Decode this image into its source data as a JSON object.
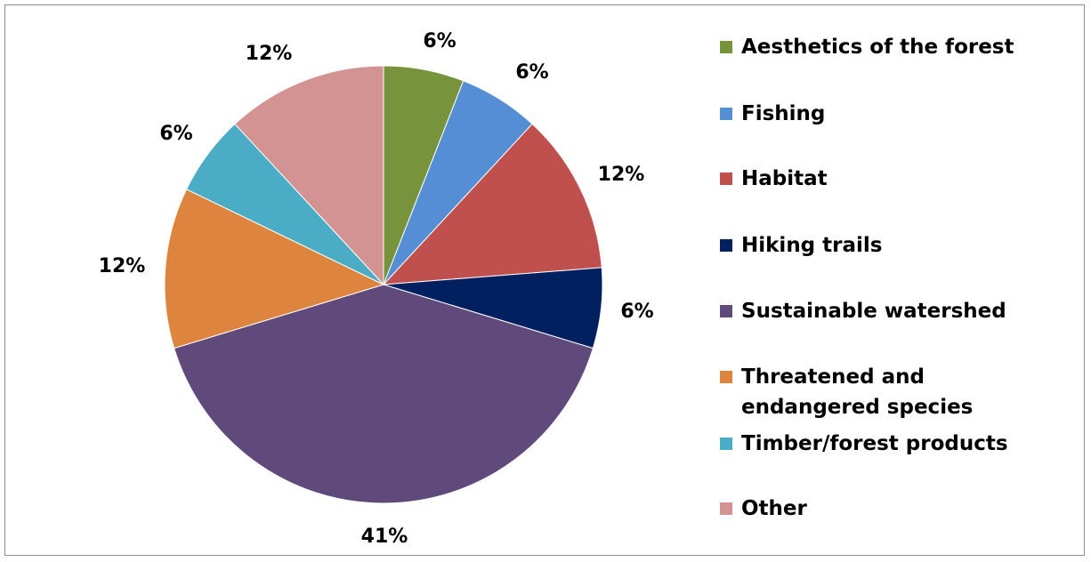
{
  "chart_data": {
    "type": "pie",
    "title": "",
    "slices": [
      {
        "label": "Aesthetics of the forest",
        "value": 6,
        "display": "6%",
        "color": "#77933c"
      },
      {
        "label": "Fishing",
        "value": 6,
        "display": "6%",
        "color": "#558ed5"
      },
      {
        "label": "Habitat",
        "value": 12,
        "display": "12%",
        "color": "#c0504d"
      },
      {
        "label": "Hiking trails",
        "value": 6,
        "display": "6%",
        "color": "#002060"
      },
      {
        "label": "Sustainable watershed",
        "value": 41,
        "display": "41%",
        "color": "#604a7b"
      },
      {
        "label": "Threatened and endangered species",
        "value": 12,
        "display": "12%",
        "color": "#dd843e"
      },
      {
        "label": "Timber/forest products",
        "value": 6,
        "display": "6%",
        "color": "#4bacc6"
      },
      {
        "label": "Other",
        "value": 12,
        "display": "12%",
        "color": "#d39392"
      }
    ],
    "legend_position": "right"
  }
}
